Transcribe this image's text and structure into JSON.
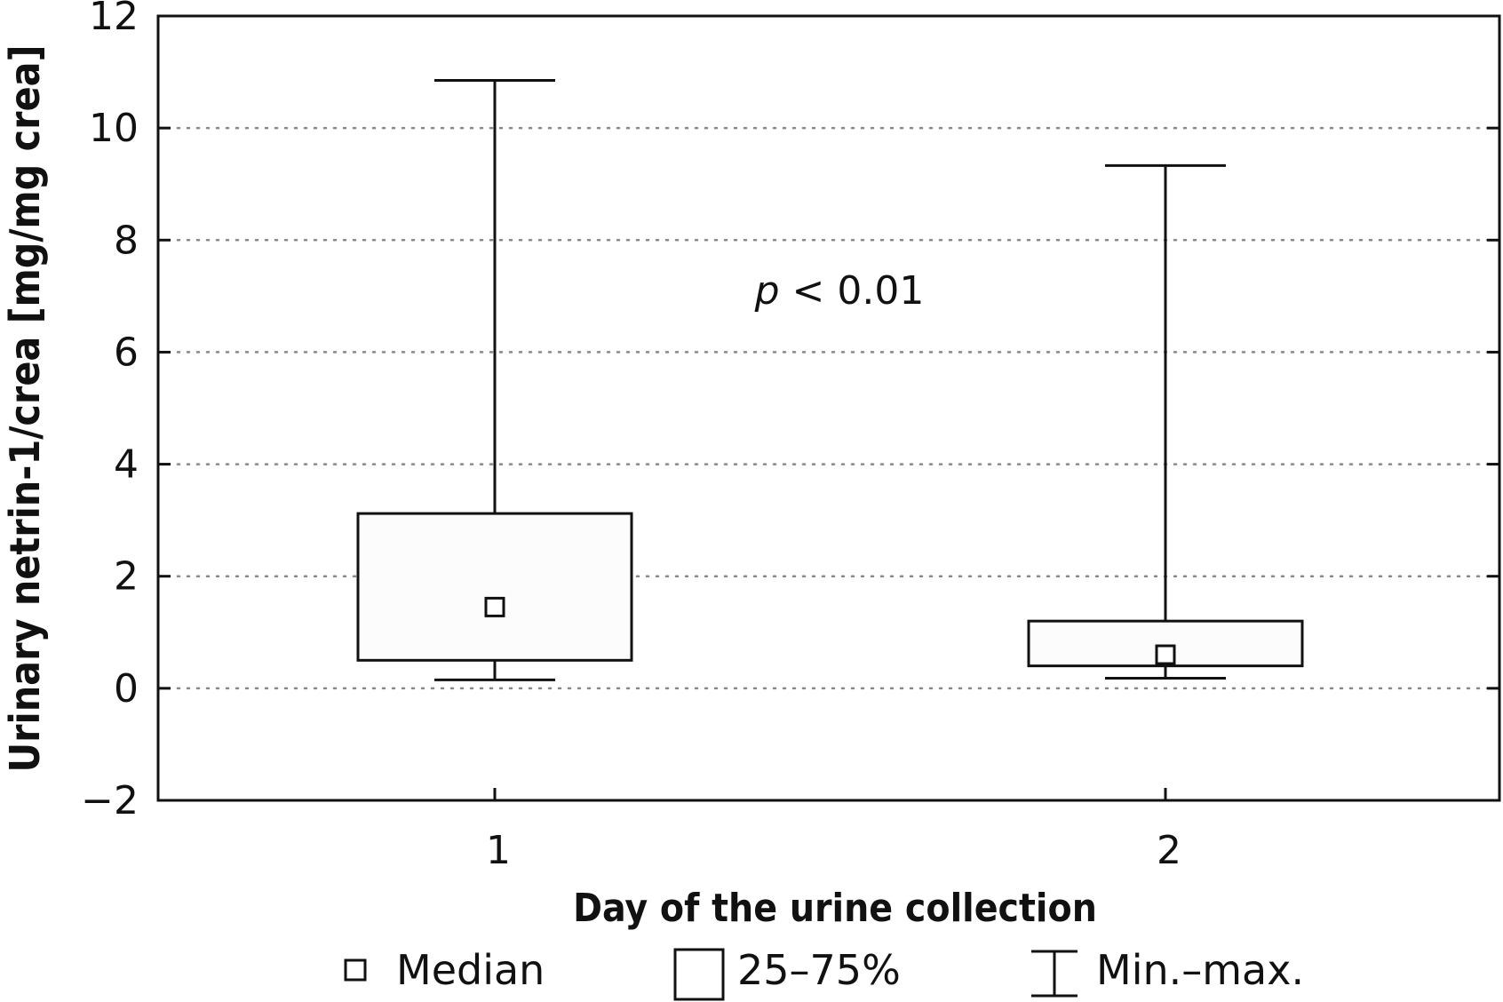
{
  "chart_data": {
    "type": "box",
    "xlabel": "Day of the urine collection",
    "ylabel": "Urinary netrin-1/crea [mg/mg crea]",
    "ylim": [
      -2,
      12
    ],
    "yticks": [
      -2,
      0,
      2,
      4,
      6,
      8,
      10,
      12
    ],
    "y_gridlines": [
      0,
      2,
      4,
      6,
      8,
      10
    ],
    "grid": "dotted horizontal",
    "categories": [
      "1",
      "2"
    ],
    "boxes": [
      {
        "category": "1",
        "min": 0.15,
        "q1": 0.5,
        "median": 1.45,
        "q3": 3.12,
        "max": 10.85
      },
      {
        "category": "2",
        "min": 0.18,
        "q1": 0.4,
        "median": 0.6,
        "q3": 1.2,
        "max": 9.33
      }
    ],
    "annotation": {
      "italic": "p",
      "text": " < 0.01",
      "x_between": [
        1,
        2
      ],
      "y": 7.1
    },
    "legend": {
      "placement": "bottom",
      "items": [
        {
          "symbol": "median-square",
          "label": "Median"
        },
        {
          "symbol": "box",
          "label": "25–75%"
        },
        {
          "symbol": "whisker",
          "label": "Min.–max."
        }
      ]
    }
  }
}
